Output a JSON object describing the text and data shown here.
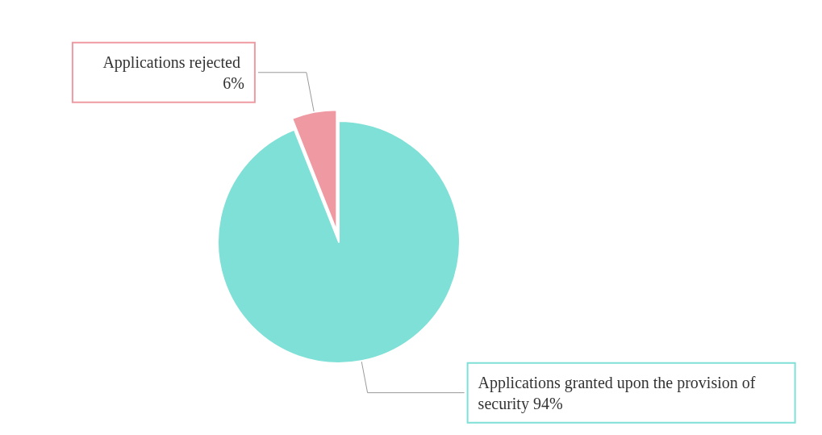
{
  "chart_data": {
    "type": "pie",
    "categories": [
      "Applications rejected",
      "Applications granted upon the provision of security"
    ],
    "values": [
      6,
      94
    ],
    "value_labels": [
      "6%",
      "94%"
    ],
    "colors": [
      "#ef9aa2",
      "#7ee0d6"
    ]
  }
}
